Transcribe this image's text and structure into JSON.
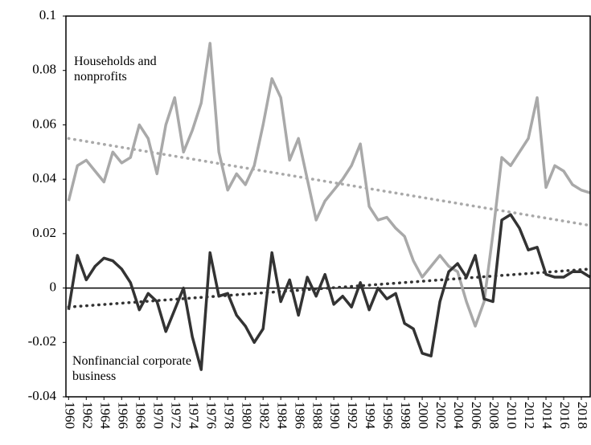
{
  "chart_data": {
    "type": "line",
    "x": [
      1960,
      1961,
      1962,
      1963,
      1964,
      1965,
      1966,
      1967,
      1968,
      1969,
      1970,
      1971,
      1972,
      1973,
      1974,
      1975,
      1976,
      1977,
      1978,
      1979,
      1980,
      1981,
      1982,
      1983,
      1984,
      1985,
      1986,
      1987,
      1988,
      1989,
      1990,
      1991,
      1992,
      1993,
      1994,
      1995,
      1996,
      1997,
      1998,
      1999,
      2000,
      2001,
      2002,
      2003,
      2004,
      2005,
      2006,
      2007,
      2008,
      2009,
      2010,
      2011,
      2012,
      2013,
      2014,
      2015,
      2016,
      2017,
      2018,
      2019
    ],
    "series": [
      {
        "name": "Households and nonprofits",
        "color": "#a9a9a9",
        "values": [
          0.032,
          0.045,
          0.047,
          0.043,
          0.039,
          0.05,
          0.046,
          0.048,
          0.06,
          0.055,
          0.042,
          0.06,
          0.07,
          0.05,
          0.058,
          0.068,
          0.09,
          0.05,
          0.036,
          0.042,
          0.038,
          0.045,
          0.06,
          0.077,
          0.07,
          0.047,
          0.055,
          0.04,
          0.025,
          0.032,
          0.036,
          0.04,
          0.045,
          0.053,
          0.03,
          0.025,
          0.026,
          0.022,
          0.019,
          0.01,
          0.004,
          0.008,
          0.012,
          0.008,
          0.006,
          -0.005,
          -0.014,
          -0.005,
          0.02,
          0.048,
          0.045,
          0.05,
          0.055,
          0.07,
          0.037,
          0.045,
          0.043,
          0.038,
          0.036,
          0.035
        ]
      },
      {
        "name": "Nonfinancial corporate business",
        "color": "#333333",
        "values": [
          -0.008,
          0.012,
          0.003,
          0.008,
          0.011,
          0.01,
          0.007,
          0.002,
          -0.008,
          -0.002,
          -0.005,
          -0.016,
          -0.008,
          0,
          -0.018,
          -0.03,
          0.013,
          -0.003,
          -0.002,
          -0.01,
          -0.014,
          -0.02,
          -0.015,
          0.013,
          -0.005,
          0.003,
          -0.01,
          0.004,
          -0.003,
          0.005,
          -0.006,
          -0.003,
          -0.007,
          0.002,
          -0.008,
          0,
          -0.004,
          -0.002,
          -0.013,
          -0.015,
          -0.024,
          -0.025,
          -0.005,
          0.006,
          0.009,
          0.004,
          0.012,
          -0.004,
          -0.005,
          0.025,
          0.027,
          0.022,
          0.014,
          0.015,
          0.005,
          0.004,
          0.004,
          0.006,
          0.006,
          0.004
        ]
      }
    ],
    "trend_lines": [
      {
        "color": "#a9a9a9",
        "x": [
          1960,
          2019
        ],
        "values": [
          0.055,
          0.023
        ]
      },
      {
        "color": "#333333",
        "x": [
          1960,
          2019
        ],
        "values": [
          -0.007,
          0.007
        ]
      }
    ],
    "xlim": [
      1959.7,
      2019
    ],
    "xticks": [
      1960,
      1962,
      1964,
      1966,
      1968,
      1970,
      1972,
      1974,
      1976,
      1978,
      1980,
      1982,
      1984,
      1986,
      1988,
      1990,
      1992,
      1994,
      1996,
      1998,
      2000,
      2002,
      2004,
      2006,
      2008,
      2010,
      2012,
      2014,
      2016,
      2018
    ],
    "ylim": [
      -0.04,
      0.1
    ],
    "yticks": [
      0.1,
      0.08,
      0.06,
      0.04,
      0.02,
      0,
      -0.02,
      -0.04
    ],
    "grid": false
  }
}
